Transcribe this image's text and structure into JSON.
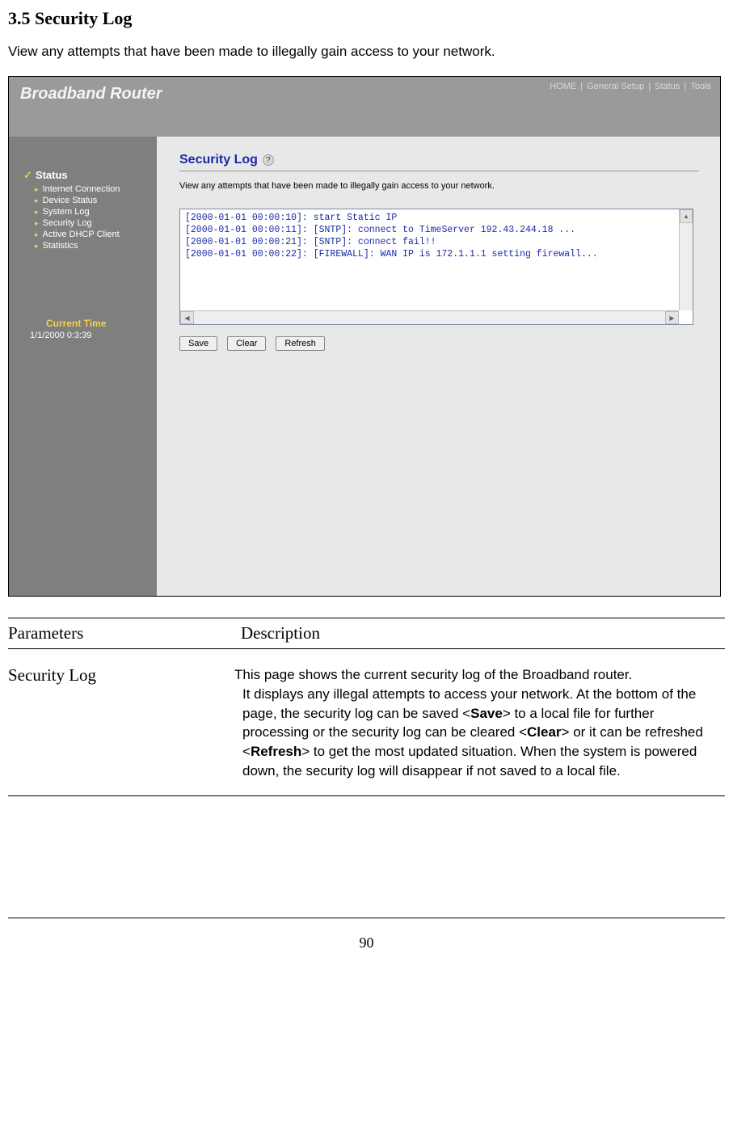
{
  "doc": {
    "section_title": "3.5 Security Log",
    "intro": "View any attempts that have been made to illegally gain access to your network.",
    "page_number": "90"
  },
  "shot": {
    "brand": "Broadband Router",
    "nav": {
      "home": "HOME",
      "general": "General Setup",
      "status": "Status",
      "tools": "Tools",
      "sep": " | "
    },
    "side": {
      "status_label": "Status",
      "items": [
        "Internet Connection",
        "Device Status",
        "System Log",
        "Security Log",
        "Active DHCP Client",
        "Statistics"
      ],
      "current_time_label": "Current Time",
      "current_time_value": "1/1/2000 0:3:39"
    },
    "panel": {
      "title": "Security Log",
      "help": "?",
      "desc": "View any attempts that have been made to illegally gain access to your network.",
      "log_text": "[2000-01-01 00:00:10]: start Static IP\n[2000-01-01 00:00:11]: [SNTP]: connect to TimeServer 192.43.244.18 ...\n[2000-01-01 00:00:21]: [SNTP]: connect fail!!\n[2000-01-01 00:00:22]: [FIREWALL]: WAN IP is 172.1.1.1 setting firewall...",
      "buttons": {
        "save": "Save",
        "clear": "Clear",
        "refresh": "Refresh"
      }
    }
  },
  "table": {
    "headers": {
      "c1": "Parameters",
      "c2": "Description"
    },
    "row": {
      "param": "Security Log",
      "desc_l1": "This page shows the current security log of the Broadband router.",
      "desc_l2": "It displays any illegal attempts to access your network.",
      "desc_l3a": "At the bottom of the page, the security log can be saved <",
      "desc_l3b": "Save",
      "desc_l3c": "> to a local file for further processing or the security log can be cleared  <",
      "desc_l3d": "Clear",
      "desc_l3e": "> or it can be refreshed <",
      "desc_l3f": "Refresh",
      "desc_l3g": "> to get the most updated situation. When the system is powered down, the security log will disappear if not saved to a local file."
    }
  }
}
